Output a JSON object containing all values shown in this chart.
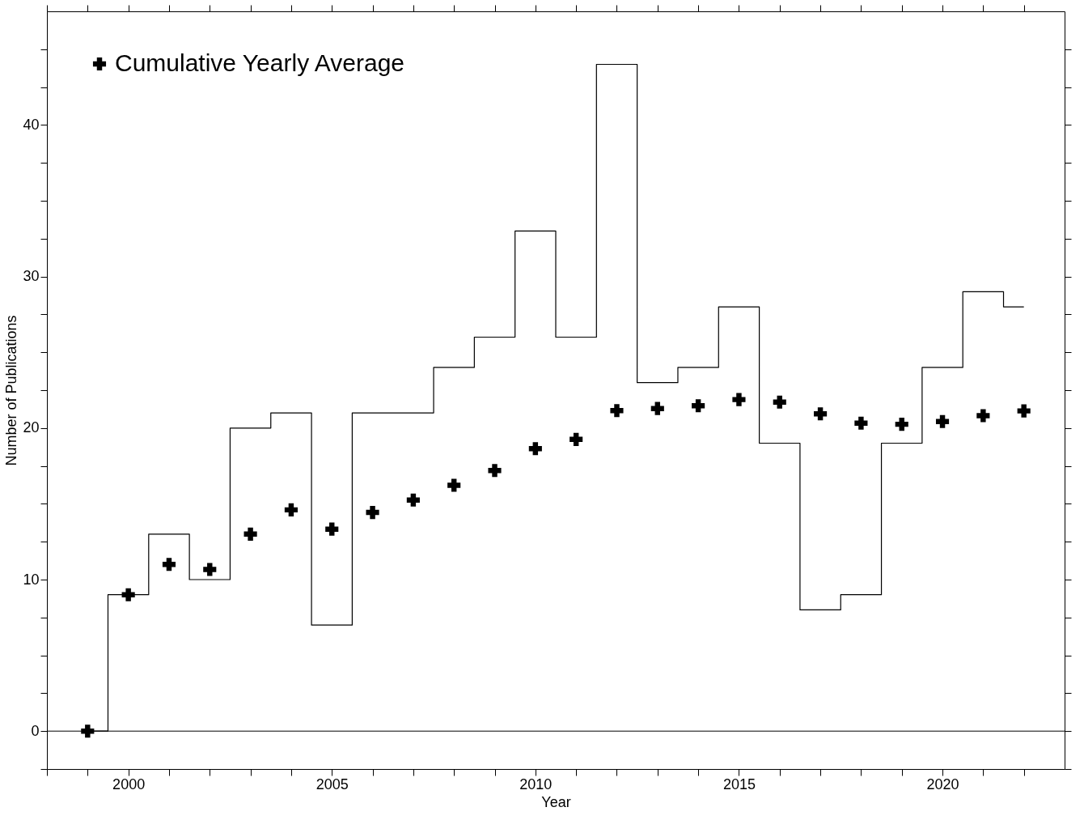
{
  "chart_data": {
    "type": "step",
    "xlabel": "Year",
    "ylabel": "Number of Publications",
    "x": [
      1999,
      2000,
      2001,
      2002,
      2003,
      2004,
      2005,
      2006,
      2007,
      2008,
      2009,
      2010,
      2011,
      2012,
      2013,
      2014,
      2015,
      2016,
      2017,
      2018,
      2019,
      2020,
      2021,
      2022
    ],
    "series": [
      {
        "color": "#000000",
        "line_style": "solid",
        "values": [
          0,
          9,
          13,
          10,
          20,
          21,
          7,
          21,
          21,
          24,
          26,
          33,
          26,
          44,
          23,
          24,
          28,
          19,
          8,
          9,
          19,
          24,
          29,
          28
        ]
      },
      {
        "type": "scatter",
        "name": "Cumulative Yearly Average",
        "color": "#000000",
        "marker": "cross",
        "values": [
          0,
          9,
          11,
          10.67,
          13,
          14.6,
          13.33,
          14.43,
          15.25,
          16.22,
          17.2,
          18.64,
          19.25,
          21.15,
          21.29,
          21.47,
          21.88,
          21.71,
          20.94,
          20.32,
          20.25,
          20.43,
          20.82,
          21.13
        ]
      }
    ],
    "xlim": [
      1998,
      2023
    ],
    "xticks": [
      {
        "value": 1998,
        "label": null
      },
      {
        "value": 1999,
        "label": null
      },
      2000,
      {
        "value": 2001,
        "label": null
      },
      {
        "value": 2002,
        "label": null
      },
      {
        "value": 2003,
        "label": null
      },
      {
        "value": 2004,
        "label": null
      },
      2005,
      {
        "value": 2006,
        "label": null
      },
      {
        "value": 2007,
        "label": null
      },
      {
        "value": 2008,
        "label": null
      },
      {
        "value": 2009,
        "label": null
      },
      2010,
      {
        "value": 2011,
        "label": null
      },
      {
        "value": 2012,
        "label": null
      },
      {
        "value": 2013,
        "label": null
      },
      {
        "value": 2014,
        "label": null
      },
      2015,
      {
        "value": 2016,
        "label": null
      },
      {
        "value": 2017,
        "label": null
      },
      {
        "value": 2018,
        "label": null
      },
      {
        "value": 2019,
        "label": null
      },
      2020,
      {
        "value": 2021,
        "label": null
      },
      {
        "value": 2022,
        "label": null
      }
    ],
    "ylim": [
      -2.5,
      47.5
    ],
    "yticks": [
      {
        "value": -2.5,
        "label": null
      },
      0,
      {
        "value": 2.5,
        "label": null
      },
      {
        "value": 5,
        "label": null
      },
      {
        "value": 7.5,
        "label": null
      },
      10,
      {
        "value": 12.5,
        "label": null
      },
      {
        "value": 15,
        "label": null
      },
      {
        "value": 17.5,
        "label": null
      },
      20,
      {
        "value": 22.5,
        "label": null
      },
      {
        "value": 25,
        "label": null
      },
      {
        "value": 27.5,
        "label": null
      },
      30,
      {
        "value": 32.5,
        "label": null
      },
      {
        "value": 35,
        "label": null
      },
      {
        "value": 37.5,
        "label": null
      },
      40,
      {
        "value": 42.5,
        "label": null
      },
      {
        "value": 45,
        "label": null
      }
    ],
    "ref_lines": [
      {
        "axis": "y",
        "value": 0,
        "color": "#000000",
        "line_style": "solid"
      }
    ],
    "legend": "top left",
    "grid": false
  }
}
